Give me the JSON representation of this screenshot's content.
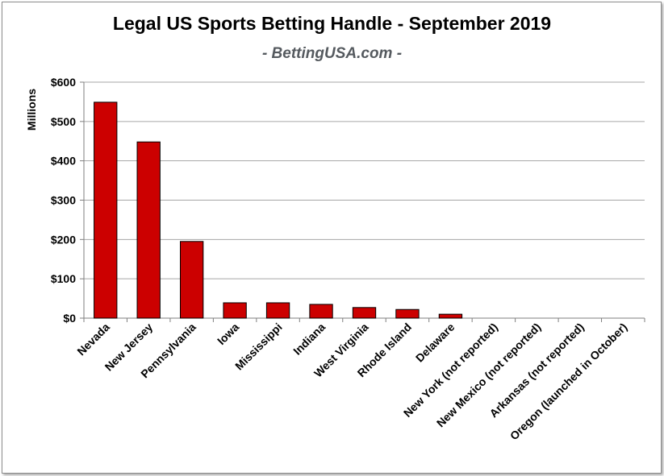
{
  "chart_data": {
    "type": "bar",
    "title": "Legal US Sports Betting Handle - September 2019",
    "subtitle": "- BettingUSA.com -",
    "ylabel": "Millions",
    "xlabel": "",
    "ylim": [
      0,
      600
    ],
    "yticks": [
      0,
      100,
      200,
      300,
      400,
      500,
      600
    ],
    "ytick_labels": [
      "$0",
      "$100",
      "$200",
      "$300",
      "$400",
      "$500",
      "$600"
    ],
    "grid": true,
    "bar_color": "#cc0000",
    "categories": [
      "Nevada",
      "New Jersey",
      "Pennsylvania",
      "Iowa",
      "Mississippi",
      "Indiana",
      "West Virginia",
      "Rhode Island",
      "Delaware",
      "New York (not reported)",
      "New Mexico (not reported)",
      "Arkansas (not reported)",
      "Oregon (launched in October)"
    ],
    "values": [
      549,
      448,
      195,
      39,
      39,
      35,
      27,
      22,
      10,
      0,
      0,
      0,
      0
    ]
  }
}
